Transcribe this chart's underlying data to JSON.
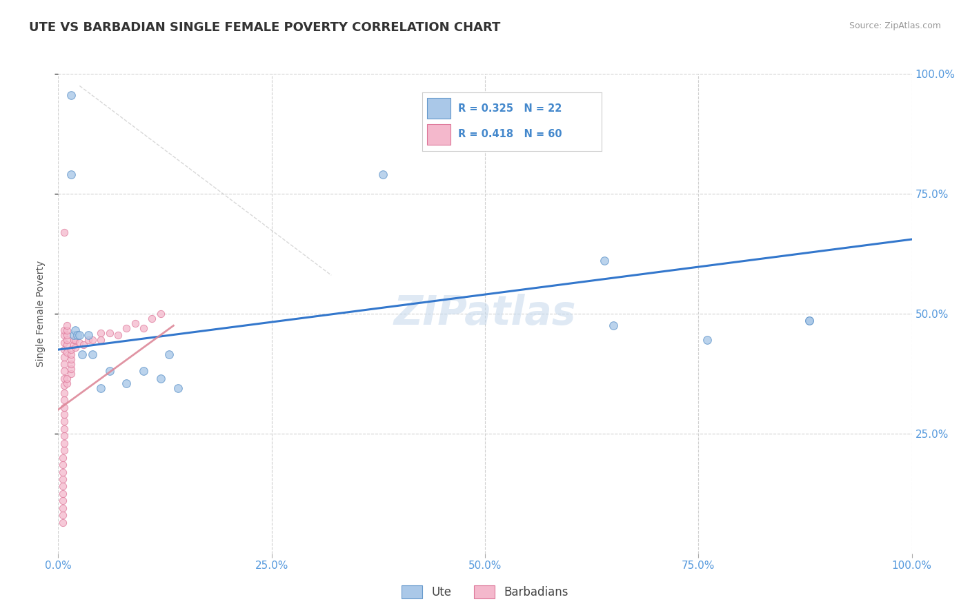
{
  "title": "UTE VS BARBADIAN SINGLE FEMALE POVERTY CORRELATION CHART",
  "source": "Source: ZipAtlas.com",
  "ylabel": "Single Female Poverty",
  "xlim": [
    0,
    1
  ],
  "ylim": [
    0,
    1
  ],
  "xtick_vals": [
    0,
    0.25,
    0.5,
    0.75,
    1.0
  ],
  "xtick_labels": [
    "0.0%",
    "25.0%",
    "50.0%",
    "75.0%",
    "100.0%"
  ],
  "ytick_vals": [
    0.25,
    0.5,
    0.75,
    1.0
  ],
  "ytick_labels": [
    "25.0%",
    "50.0%",
    "75.0%",
    "100.0%"
  ],
  "bg_color": "#ffffff",
  "grid_color": "#d0d0d0",
  "tick_color": "#5599dd",
  "ute_fill": "#aac8e8",
  "ute_edge": "#6699cc",
  "barb_fill": "#f4b8cc",
  "barb_edge": "#dd7799",
  "ute_line_color": "#3377cc",
  "barb_line_color": "#dd8899",
  "watermark_color": "#c5d8ec",
  "legend_text_color": "#4488cc",
  "legend_R_ute": "R = 0.325",
  "legend_N_ute": "N = 22",
  "legend_R_bar": "R = 0.418",
  "legend_N_bar": "N = 60",
  "ute_x": [
    0.015,
    0.015,
    0.018,
    0.02,
    0.022,
    0.025,
    0.028,
    0.035,
    0.04,
    0.05,
    0.06,
    0.08,
    0.1,
    0.13,
    0.14,
    0.38,
    0.64,
    0.65,
    0.76,
    0.88,
    0.88,
    0.12
  ],
  "ute_y": [
    0.955,
    0.79,
    0.455,
    0.465,
    0.455,
    0.455,
    0.415,
    0.455,
    0.415,
    0.345,
    0.38,
    0.355,
    0.38,
    0.415,
    0.345,
    0.79,
    0.61,
    0.475,
    0.445,
    0.485,
    0.485,
    0.365
  ],
  "barb_x": [
    0.005,
    0.005,
    0.005,
    0.005,
    0.005,
    0.005,
    0.005,
    0.005,
    0.005,
    0.005,
    0.007,
    0.007,
    0.007,
    0.007,
    0.007,
    0.007,
    0.007,
    0.007,
    0.007,
    0.007,
    0.007,
    0.007,
    0.007,
    0.007,
    0.007,
    0.007,
    0.007,
    0.007,
    0.007,
    0.01,
    0.01,
    0.01,
    0.01,
    0.01,
    0.01,
    0.01,
    0.01,
    0.015,
    0.015,
    0.015,
    0.015,
    0.015,
    0.015,
    0.018,
    0.018,
    0.02,
    0.02,
    0.025,
    0.03,
    0.035,
    0.04,
    0.05,
    0.05,
    0.06,
    0.07,
    0.08,
    0.09,
    0.1,
    0.11,
    0.12
  ],
  "barb_y": [
    0.065,
    0.08,
    0.095,
    0.11,
    0.125,
    0.14,
    0.155,
    0.17,
    0.185,
    0.2,
    0.215,
    0.23,
    0.245,
    0.26,
    0.275,
    0.29,
    0.305,
    0.32,
    0.335,
    0.35,
    0.365,
    0.38,
    0.395,
    0.41,
    0.425,
    0.44,
    0.455,
    0.465,
    0.67,
    0.42,
    0.435,
    0.445,
    0.455,
    0.465,
    0.475,
    0.355,
    0.365,
    0.375,
    0.385,
    0.395,
    0.405,
    0.415,
    0.425,
    0.435,
    0.445,
    0.43,
    0.445,
    0.44,
    0.435,
    0.445,
    0.445,
    0.445,
    0.46,
    0.46,
    0.455,
    0.47,
    0.48,
    0.47,
    0.49,
    0.5
  ],
  "watermark": "ZIPatlas",
  "watermark_fontsize": 42
}
